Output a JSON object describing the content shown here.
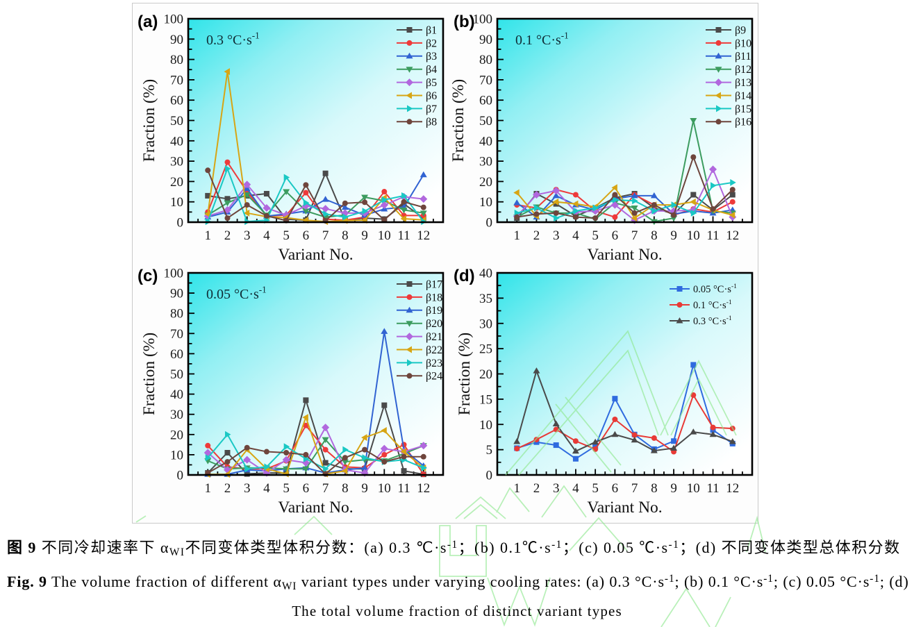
{
  "figure": {
    "panel_letters": [
      "(a)",
      "(b)",
      "(c)",
      "(d)"
    ],
    "watermark_color": "#8fe88f",
    "background_gradient": [
      "#30e4e9",
      "#92eff3",
      "#d8f9fb",
      "#ffffff"
    ]
  },
  "chart_data": [
    {
      "type": "line",
      "panel": "(a)",
      "title": "0.3 °C·s⁻¹",
      "xlabel": "Variant No.",
      "ylabel": "Fraction (%)",
      "x": [
        1,
        2,
        3,
        4,
        5,
        6,
        7,
        8,
        9,
        10,
        11,
        12
      ],
      "xlim": [
        0,
        13
      ],
      "ylim": [
        0,
        100
      ],
      "ytick": 10,
      "yticks": [
        0,
        10,
        20,
        30,
        40,
        50,
        60,
        70,
        80,
        90,
        100
      ],
      "grid": false,
      "legend_position": "top-right",
      "series": [
        {
          "name": "β1",
          "marker": "square",
          "color": "#4a4a4a",
          "values": [
            13,
            11.5,
            13,
            14,
            1.5,
            1,
            24,
            1,
            2,
            1.5,
            9,
            2
          ]
        },
        {
          "name": "β2",
          "marker": "circle",
          "color": "#ee3a3a",
          "values": [
            5,
            29.5,
            15,
            3,
            3.5,
            14.5,
            1.5,
            1,
            2.5,
            15,
            3.3,
            3.3
          ]
        },
        {
          "name": "β3",
          "marker": "triangle-up",
          "color": "#3163d2",
          "values": [
            2.5,
            5,
            16.5,
            3,
            4,
            5.5,
            11.2,
            7.3,
            3.4,
            6.5,
            7.4,
            23.3
          ]
        },
        {
          "name": "β4",
          "marker": "triangle-down",
          "color": "#3c9c5f",
          "values": [
            3.5,
            9.5,
            13.5,
            3.5,
            15,
            5.5,
            2.5,
            3.5,
            12.3,
            10.5,
            6,
            4.5
          ]
        },
        {
          "name": "β5",
          "marker": "diamond",
          "color": "#b168de",
          "values": [
            3,
            6,
            18.5,
            7,
            3.5,
            8,
            6.6,
            4.5,
            4.5,
            8.4,
            12.5,
            11.4
          ]
        },
        {
          "name": "β6",
          "marker": "triangle-left",
          "color": "#d7a514",
          "values": [
            4,
            74,
            4.5,
            2.7,
            2.2,
            1,
            0.3,
            0.8,
            1,
            12,
            1.7,
            1.1
          ]
        },
        {
          "name": "β7",
          "marker": "triangle-right",
          "color": "#1ac8c4",
          "values": [
            0.3,
            26.3,
            0.3,
            1,
            22,
            9.5,
            4,
            2.5,
            5.4,
            11,
            13,
            0.3
          ]
        },
        {
          "name": "β8",
          "marker": "circle",
          "color": "#6e453c",
          "values": [
            25.5,
            2,
            8.5,
            3.1,
            0.8,
            18.3,
            0.7,
            9.3,
            9.8,
            1.1,
            10,
            7.3
          ]
        }
      ]
    },
    {
      "type": "line",
      "panel": "(b)",
      "title": "0.1 °C·s⁻¹",
      "xlabel": "Variant No.",
      "ylabel": "Fraction (%)",
      "x": [
        1,
        2,
        3,
        4,
        5,
        6,
        7,
        8,
        9,
        10,
        11,
        12
      ],
      "xlim": [
        0,
        13
      ],
      "ylim": [
        0,
        100
      ],
      "ytick": 10,
      "yticks": [
        0,
        10,
        20,
        30,
        40,
        50,
        60,
        70,
        80,
        90,
        100
      ],
      "grid": false,
      "legend_position": "top-right",
      "series": [
        {
          "name": "β9",
          "marker": "square",
          "color": "#4a4a4a",
          "values": [
            2,
            14,
            9,
            3,
            7,
            12,
            14,
            7,
            4,
            13.5,
            6,
            13.5
          ]
        },
        {
          "name": "β10",
          "marker": "circle",
          "color": "#ee3a3a",
          "values": [
            8.5,
            7,
            16,
            13.5,
            5.5,
            2.5,
            13.5,
            8.5,
            3.5,
            6.5,
            5,
            10
          ]
        },
        {
          "name": "β11",
          "marker": "triangle-up",
          "color": "#3163d2",
          "values": [
            9.5,
            2.5,
            13,
            8.5,
            6,
            11.5,
            13,
            13,
            4,
            5.5,
            4.5,
            6
          ]
        },
        {
          "name": "β12",
          "marker": "triangle-down",
          "color": "#3c9c5f",
          "values": [
            2.5,
            7.5,
            4.5,
            4.5,
            1.5,
            9.5,
            7,
            0.3,
            2,
            50,
            5.5,
            4.5
          ]
        },
        {
          "name": "β13",
          "marker": "diamond",
          "color": "#b168de",
          "values": [
            2.9,
            13.5,
            15.5,
            5,
            5.5,
            8.5,
            1,
            5.5,
            5.5,
            6,
            26,
            2.5
          ]
        },
        {
          "name": "β14",
          "marker": "triangle-left",
          "color": "#d7a514",
          "values": [
            14.5,
            3,
            10,
            9,
            7.5,
            17,
            2,
            8.5,
            8.5,
            10,
            6,
            3.5
          ]
        },
        {
          "name": "β15",
          "marker": "triangle-right",
          "color": "#1ac8c4",
          "values": [
            4.5,
            7,
            2,
            5.5,
            7,
            11,
            10.5,
            5.5,
            8.5,
            4.5,
            18,
            19.5
          ]
        },
        {
          "name": "β16",
          "marker": "circle",
          "color": "#6e453c",
          "values": [
            2.5,
            4,
            4.5,
            2.5,
            2,
            13.5,
            4.5,
            8.5,
            3.5,
            32,
            6.5,
            16
          ]
        }
      ]
    },
    {
      "type": "line",
      "panel": "(c)",
      "title": "0.05 °C·s⁻¹",
      "xlabel": "Variant No.",
      "ylabel": "Fraction (%)",
      "x": [
        1,
        2,
        3,
        4,
        5,
        6,
        7,
        8,
        9,
        10,
        11,
        12
      ],
      "xlim": [
        0,
        13
      ],
      "ylim": [
        0,
        100
      ],
      "ytick": 10,
      "yticks": [
        0,
        10,
        20,
        30,
        40,
        50,
        60,
        70,
        80,
        90,
        100
      ],
      "grid": false,
      "legend_position": "top-right",
      "series": [
        {
          "name": "β17",
          "marker": "square",
          "color": "#4a4a4a",
          "values": [
            1,
            11,
            0.5,
            1,
            1,
            37,
            6,
            3,
            3,
            34.5,
            2,
            0.3
          ]
        },
        {
          "name": "β18",
          "marker": "circle",
          "color": "#ee3a3a",
          "values": [
            14.5,
            4,
            3,
            3,
            7,
            24.5,
            12.5,
            4,
            3.5,
            10,
            15,
            0.3
          ]
        },
        {
          "name": "β19",
          "marker": "triangle-up",
          "color": "#3163d2",
          "values": [
            0.3,
            0.3,
            2.5,
            2,
            3,
            3.5,
            1,
            2.5,
            3.5,
            71,
            12.5,
            4.5
          ]
        },
        {
          "name": "β20",
          "marker": "triangle-down",
          "color": "#3c9c5f",
          "values": [
            7,
            3,
            3.5,
            3.5,
            3,
            3,
            17.5,
            6.5,
            7.5,
            7,
            10.5,
            14.5
          ]
        },
        {
          "name": "β21",
          "marker": "diamond",
          "color": "#b168de",
          "values": [
            11,
            2.5,
            7.5,
            1,
            7.5,
            6,
            23.5,
            2.5,
            1,
            13,
            11.5,
            14.5
          ]
        },
        {
          "name": "β22",
          "marker": "triangle-left",
          "color": "#d7a514",
          "values": [
            0.3,
            0.3,
            12.5,
            3,
            0.5,
            28.5,
            0.5,
            2,
            18.5,
            22,
            11.5,
            3.5
          ]
        },
        {
          "name": "β23",
          "marker": "triangle-right",
          "color": "#1ac8c4",
          "values": [
            8.5,
            20,
            3,
            4,
            14,
            8,
            3,
            12.5,
            8.5,
            6.5,
            7.5,
            3.5
          ]
        },
        {
          "name": "β24",
          "marker": "circle",
          "color": "#6e453c",
          "values": [
            1,
            6.5,
            13.5,
            11.5,
            11,
            10,
            0.5,
            8.5,
            12.5,
            6.5,
            9,
            9
          ]
        }
      ]
    },
    {
      "type": "line",
      "panel": "(d)",
      "title": "",
      "xlabel": "Variant No.",
      "ylabel": "Fraction (%)",
      "x": [
        1,
        2,
        3,
        4,
        5,
        6,
        7,
        8,
        9,
        10,
        11,
        12
      ],
      "xlim": [
        0,
        13
      ],
      "ylim": [
        0,
        40
      ],
      "ytick": 5,
      "yticks": [
        0,
        5,
        10,
        15,
        20,
        25,
        30,
        35,
        40
      ],
      "grid": false,
      "legend_position": "top-right",
      "series": [
        {
          "name": "0.05 °C·s⁻¹",
          "marker": "square",
          "color": "#2f6bdf",
          "values": [
            5.3,
            6.5,
            5.9,
            3.2,
            5.7,
            15.1,
            8.0,
            5.1,
            6.7,
            21.8,
            8.9,
            6.2
          ]
        },
        {
          "name": "0.1 °C·s⁻¹",
          "marker": "circle",
          "color": "#e83a36",
          "values": [
            5.2,
            7.0,
            9.0,
            6.7,
            5.1,
            11.0,
            7.9,
            7.3,
            4.6,
            15.8,
            9.4,
            9.2
          ]
        },
        {
          "name": "0.3 °C·s⁻¹",
          "marker": "triangle-up",
          "color": "#4a4a4a",
          "values": [
            6.6,
            20.6,
            10.1,
            4.7,
            6.5,
            8.0,
            6.9,
            4.8,
            5.3,
            8.5,
            8.0,
            6.6
          ]
        }
      ]
    }
  ],
  "captions": {
    "zh": [
      {
        "t": "图 9",
        "b": 1
      },
      {
        "t": "  不同冷却速率下 α"
      },
      {
        "t": "WI",
        "sub": 1
      },
      {
        "t": "不同变体类型体积分数：(a) 0.3 ℃·s"
      },
      {
        "t": "-1",
        "sup": 1
      },
      {
        "t": "；(b) 0.1℃·s"
      },
      {
        "t": "-1",
        "sup": 1
      },
      {
        "t": "；(c) 0.05 ℃·s"
      },
      {
        "t": "-1",
        "sup": 1
      },
      {
        "t": "；(d) 不同变体类型总体积分数"
      }
    ],
    "en": [
      {
        "t": "Fig. 9",
        "b": 1
      },
      {
        "t": "   The volume fraction of different α"
      },
      {
        "t": "WI",
        "sub": 1
      },
      {
        "t": " variant types under varying cooling rates: (a) 0.3 °C·s"
      },
      {
        "t": "-1",
        "sup": 1
      },
      {
        "t": "; (b) 0.1 °C·s"
      },
      {
        "t": "-1",
        "sup": 1
      },
      {
        "t": "; (c) 0.05 °C·s"
      },
      {
        "t": "-1",
        "sup": 1
      },
      {
        "t": "; (d)"
      }
    ],
    "en2": "The total volume fraction of distinct variant types"
  }
}
